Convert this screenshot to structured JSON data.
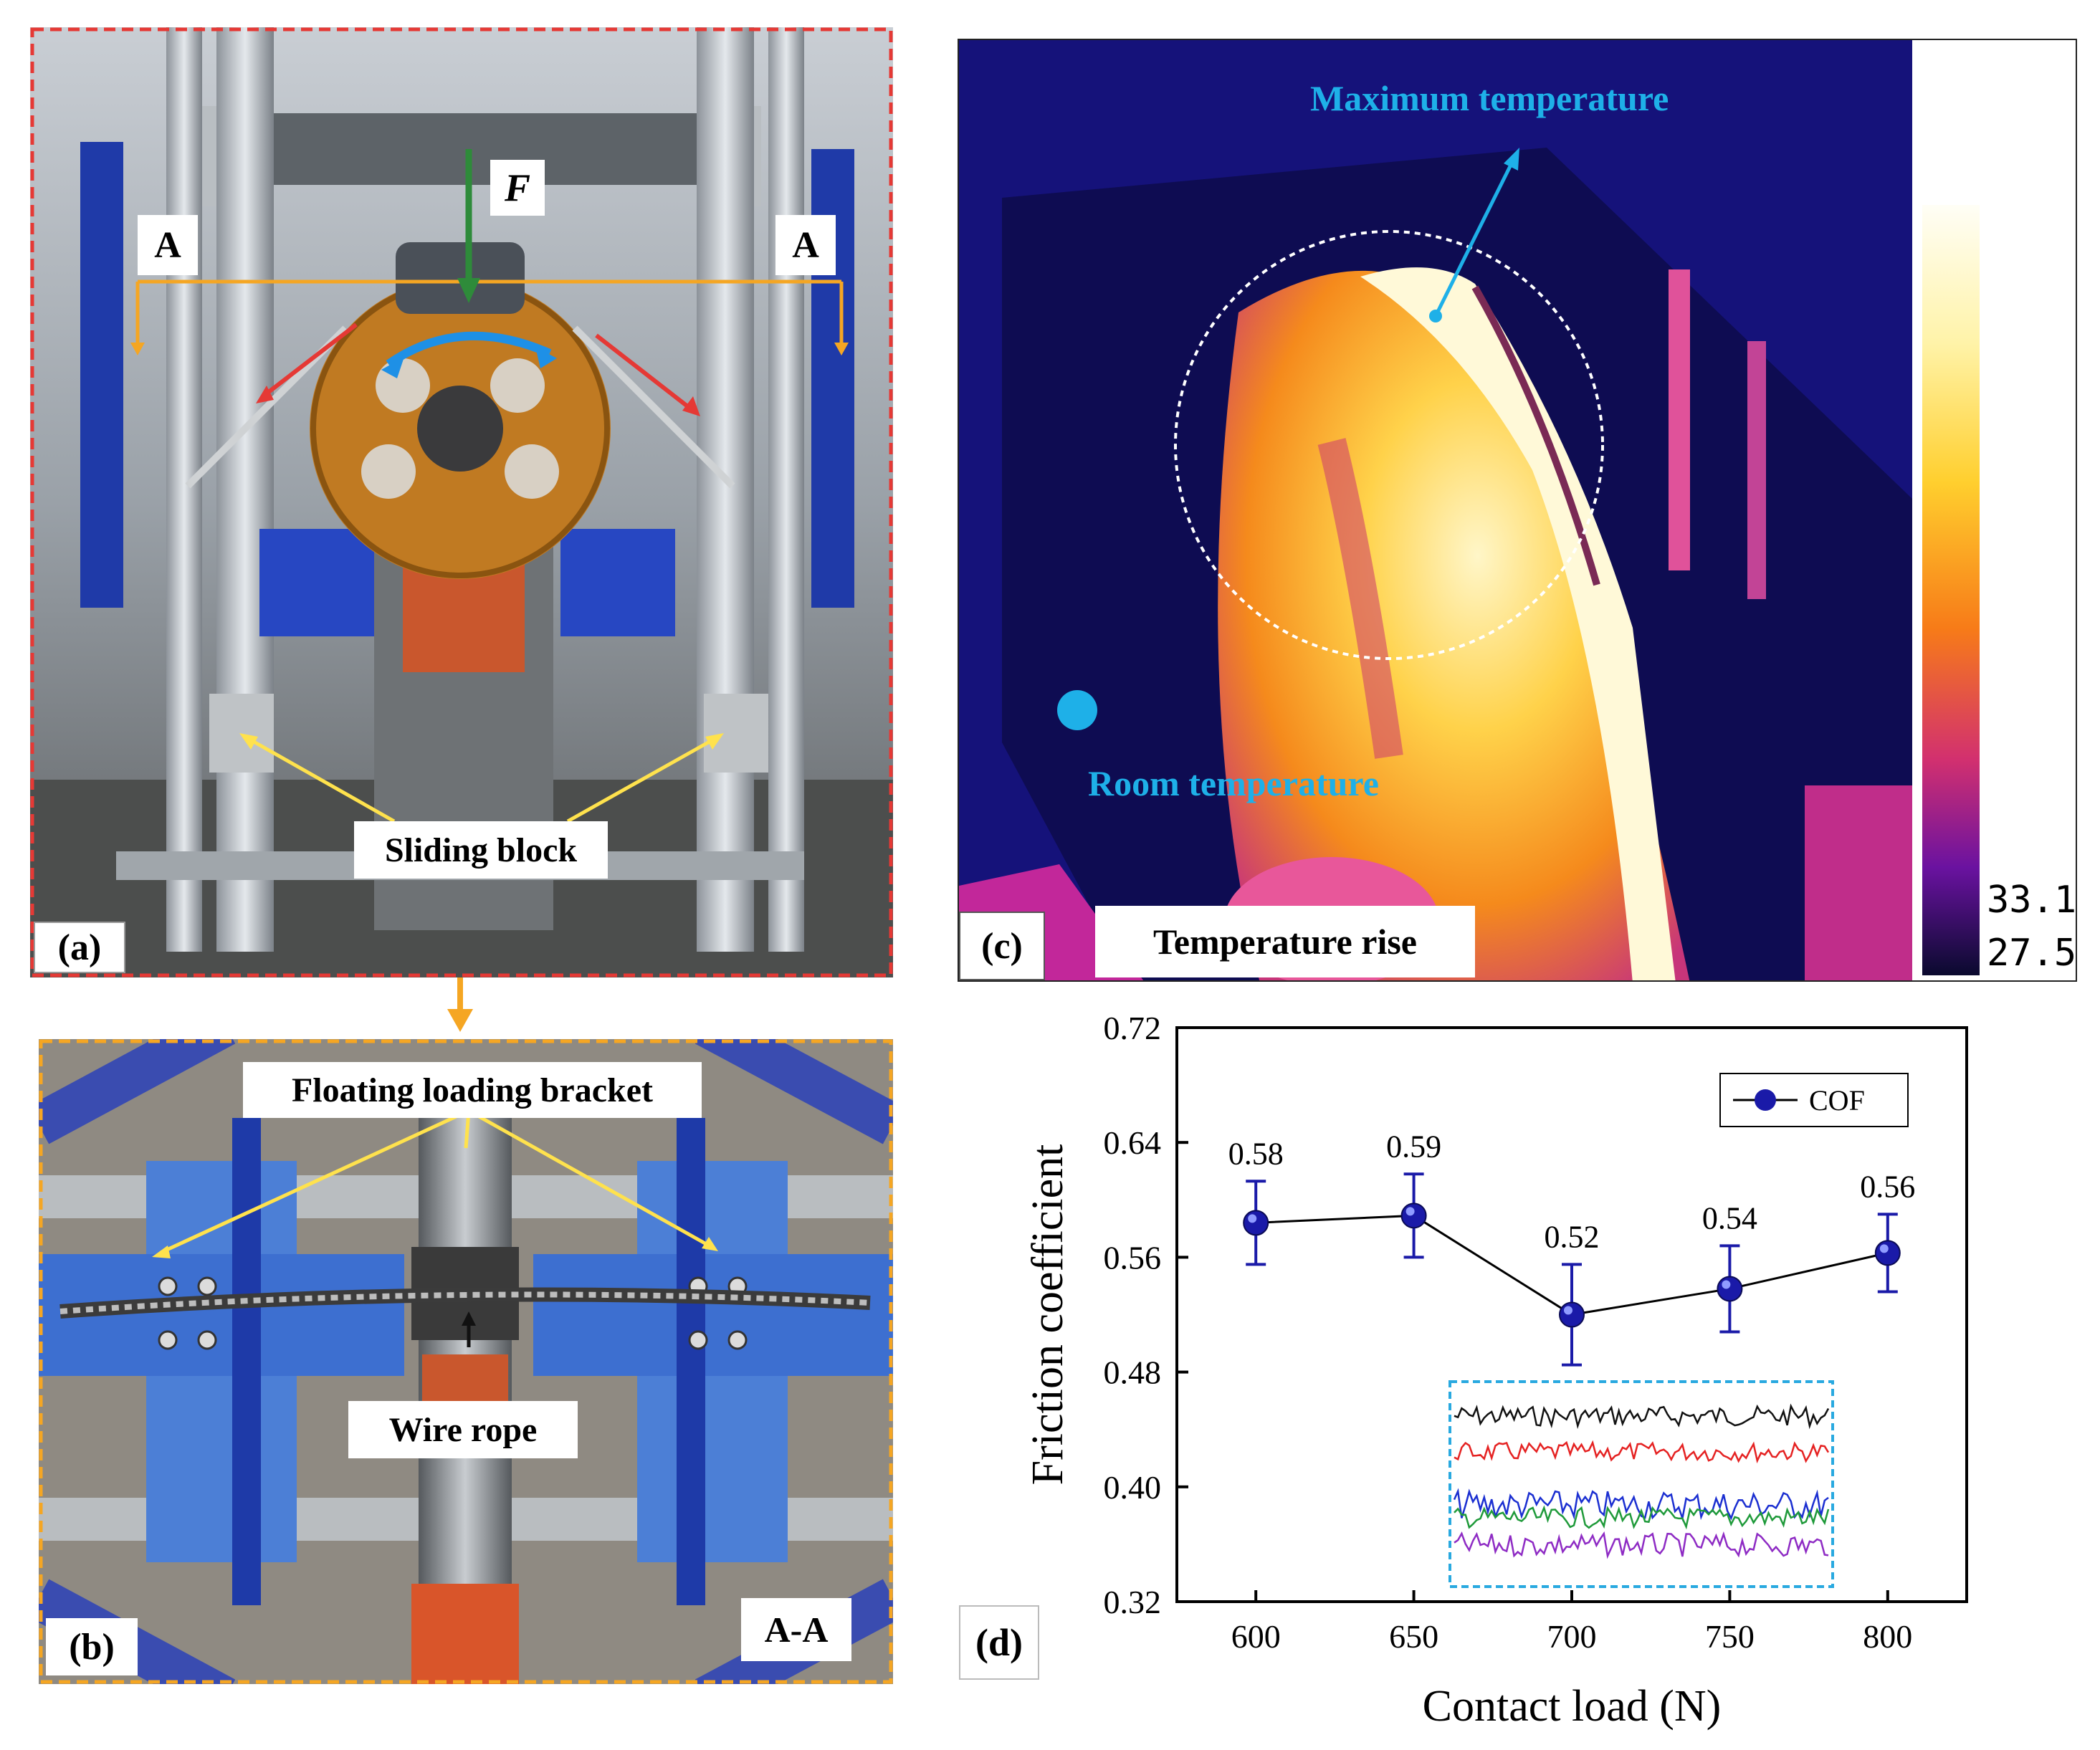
{
  "panel_a": {
    "tag": "(a)",
    "force_label": "F",
    "section_left": "A",
    "section_right": "A",
    "sliding_block_label": "Sliding block"
  },
  "panel_b": {
    "tag": "(b)",
    "bracket_label": "Floating loading bracket",
    "rope_label": "Wire rope",
    "section_label": "A-A"
  },
  "panel_c": {
    "tag": "(c)",
    "title_label": "Temperature rise",
    "max_temp_label": "Maximum temperature",
    "room_temp_label": "Room temperature",
    "scale_max": "33.1",
    "scale_min": "27.5"
  },
  "panel_d": {
    "tag": "(d)"
  },
  "colors": {
    "panel_a_frame": "#e53935",
    "panel_b_frame": "#f5a623",
    "connector_arrow": "#f5a623",
    "marker": "#1a1aa8",
    "inset_frame": "#29a9e0",
    "thermal_accent": "#1eb0e8"
  },
  "chart_data": {
    "type": "line",
    "title": "",
    "xlabel": "Contact load (N)",
    "ylabel": "Friction coefficient",
    "xlim": [
      575,
      825
    ],
    "ylim": [
      0.32,
      0.72
    ],
    "xticks": [
      600,
      650,
      700,
      750,
      800
    ],
    "yticks": [
      0.32,
      0.4,
      0.48,
      0.56,
      0.64,
      0.72
    ],
    "x": [
      600,
      650,
      700,
      750,
      800
    ],
    "series": [
      {
        "name": "COF",
        "values": [
          0.584,
          0.589,
          0.52,
          0.538,
          0.563
        ],
        "error": [
          0.029,
          0.029,
          0.035,
          0.03,
          0.027
        ],
        "labels": [
          "0.58",
          "0.59",
          "0.52",
          "0.54",
          "0.56"
        ]
      }
    ],
    "legend": "top-right",
    "grid": false,
    "inset": {
      "type": "line",
      "series_colors": [
        "#111111",
        "#e52222",
        "#1b2fd1",
        "#1f9a3a",
        "#8e2bc4"
      ]
    }
  }
}
